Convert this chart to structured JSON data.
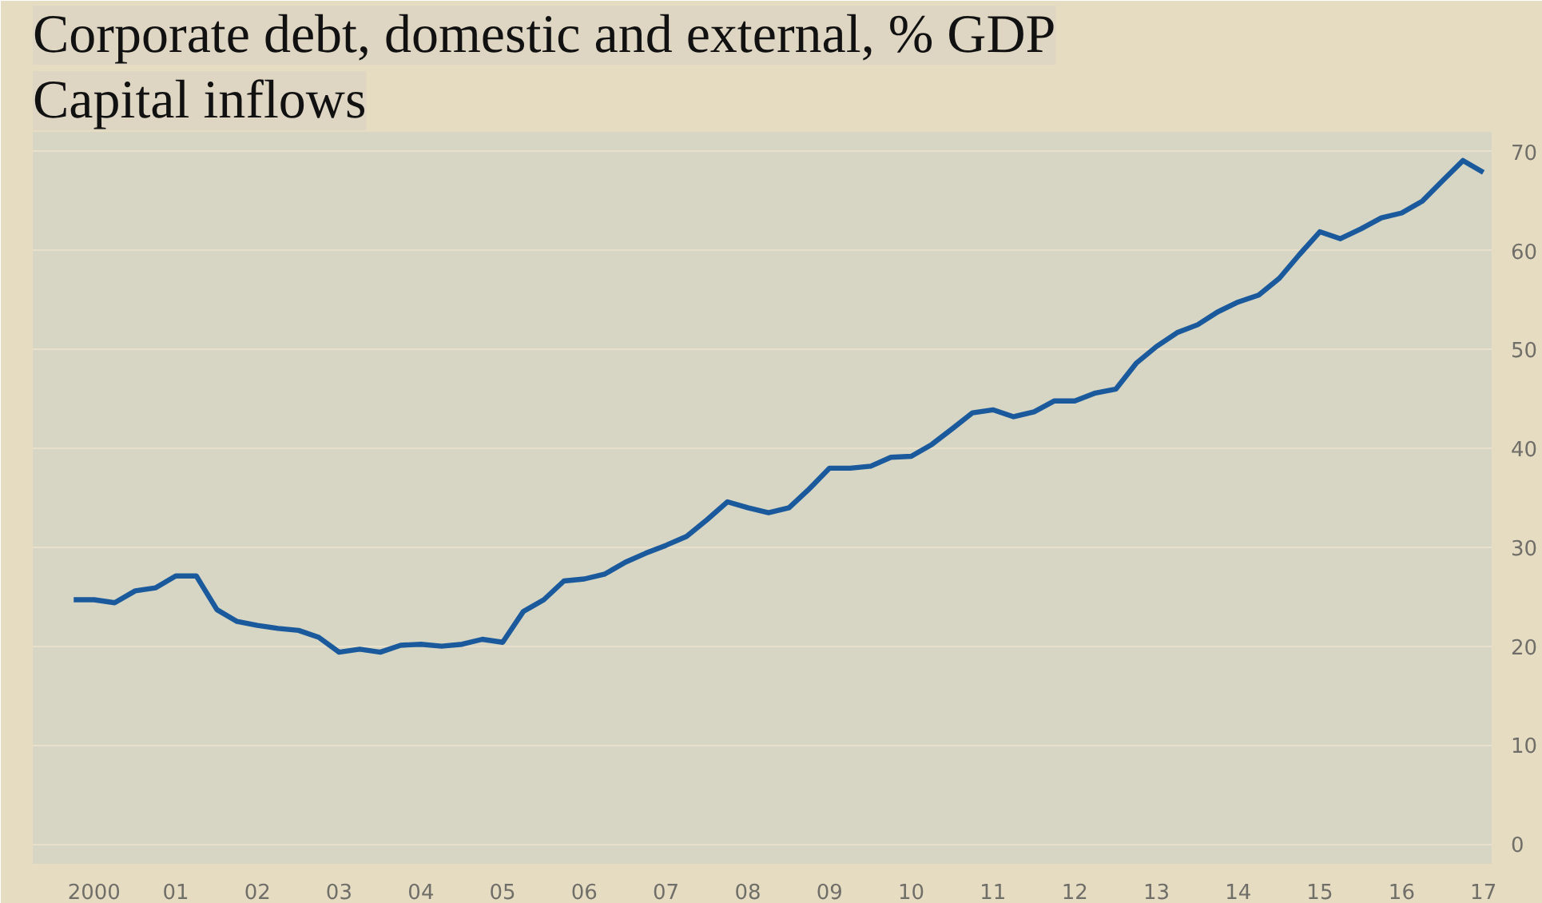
{
  "chart_data": {
    "type": "line",
    "title": "Corporate debt, domestic and external, % GDP",
    "subtitle": "Capital inflows",
    "x": [
      "2000-04-01",
      "2000-07-01",
      "2000-10-01",
      "2001-01-01",
      "2001-04-01",
      "2001-07-01",
      "2001-10-01",
      "2002-01-01",
      "2002-04-01",
      "2002-07-01",
      "2002-10-01",
      "2003-01-01",
      "2003-04-01",
      "2003-07-01",
      "2003-10-01",
      "2004-01-01",
      "2004-04-01",
      "2004-07-01",
      "2004-10-01",
      "2005-01-01",
      "2005-04-01",
      "2005-07-01",
      "2005-10-01",
      "2006-01-01",
      "2006-04-01",
      "2006-07-01",
      "2006-10-01",
      "2007-01-01",
      "2007-04-01",
      "2007-07-01",
      "2007-10-01",
      "2008-01-01",
      "2008-04-01",
      "2008-07-01",
      "2008-10-01",
      "2009-01-01",
      "2009-04-01",
      "2009-07-01",
      "2009-10-01",
      "2010-01-01",
      "2010-04-01",
      "2010-07-01",
      "2010-10-01",
      "2011-01-01",
      "2011-04-01",
      "2011-07-01",
      "2011-10-01",
      "2012-01-01",
      "2012-04-01",
      "2012-07-01",
      "2012-10-01",
      "2013-01-01",
      "2013-04-01",
      "2013-07-01",
      "2013-10-01",
      "2014-01-01",
      "2014-04-01",
      "2014-07-01",
      "2014-10-01",
      "2015-01-01",
      "2015-04-01",
      "2015-07-01",
      "2015-10-01",
      "2016-01-01",
      "2016-04-01",
      "2016-07-01",
      "2016-10-01",
      "2017-01-01",
      "2017-04-01",
      "2017-07-01"
    ],
    "series": [
      {
        "color": "#1a5a9c",
        "values": [
          24.7,
          24.7,
          24.4,
          25.6,
          25.9,
          27.1,
          27.1,
          23.7,
          22.5,
          22.1,
          21.8,
          21.6,
          20.9,
          19.4,
          19.7,
          19.4,
          20.1,
          20.2,
          20.0,
          20.2,
          20.7,
          20.4,
          23.5,
          24.7,
          26.6,
          26.8,
          27.3,
          28.5,
          29.4,
          30.2,
          31.1,
          32.8,
          34.6,
          34.0,
          33.5,
          34.0,
          35.9,
          38.0,
          38.0,
          38.2,
          39.1,
          39.2,
          40.4,
          42.0,
          43.6,
          43.9,
          43.2,
          43.7,
          44.8,
          44.8,
          45.6,
          46.0,
          48.6,
          50.3,
          51.7,
          52.5,
          53.8,
          54.8,
          55.5,
          57.2,
          59.6,
          61.9,
          61.2,
          62.2,
          63.3,
          63.8,
          65.0,
          67.1,
          69.1,
          67.9
        ]
      }
    ],
    "xlim": [
      "1999-10-01",
      "2017-08-07"
    ],
    "ylim": [
      -2,
      72
    ],
    "xticks": [
      {
        "value": "2000-07-01",
        "label": "2000"
      },
      {
        "value": "2001-07-01",
        "label": "01"
      },
      {
        "value": "2002-07-01",
        "label": "02"
      },
      {
        "value": "2003-07-01",
        "label": "03"
      },
      {
        "value": "2004-07-01",
        "label": "04"
      },
      {
        "value": "2005-07-01",
        "label": "05"
      },
      {
        "value": "2006-07-01",
        "label": "06"
      },
      {
        "value": "2007-07-01",
        "label": "07"
      },
      {
        "value": "2008-07-01",
        "label": "08"
      },
      {
        "value": "2009-07-01",
        "label": "09"
      },
      {
        "value": "2010-07-01",
        "label": "10"
      },
      {
        "value": "2011-07-01",
        "label": "11"
      },
      {
        "value": "2012-07-01",
        "label": "12"
      },
      {
        "value": "2013-07-01",
        "label": "13"
      },
      {
        "value": "2014-07-01",
        "label": "14"
      },
      {
        "value": "2015-07-01",
        "label": "15"
      },
      {
        "value": "2016-07-01",
        "label": "16"
      },
      {
        "value": "2017-07-01",
        "label": "17"
      }
    ],
    "yticks": [
      0,
      10,
      20,
      30,
      40,
      50,
      60,
      70
    ],
    "grid": "y",
    "marker": "none",
    "line_style": "solid"
  }
}
